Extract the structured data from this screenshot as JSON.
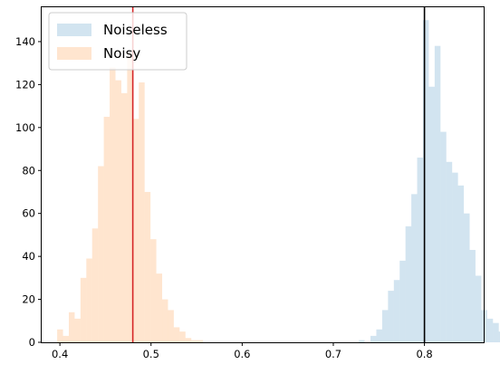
{
  "chart_data": {
    "type": "histogram",
    "title": "",
    "xlabel": "",
    "ylabel": "",
    "xlim": [
      0.38,
      0.865
    ],
    "ylim": [
      0,
      156
    ],
    "grid": false,
    "legend_placement": "top-left",
    "x_ticks": [
      0.4,
      0.5,
      0.6,
      0.7,
      0.8
    ],
    "x_tick_labels": [
      "0.4",
      "0.5",
      "0.6",
      "0.7",
      "0.8"
    ],
    "y_ticks": [
      0,
      20,
      40,
      60,
      80,
      100,
      120,
      140
    ],
    "y_tick_labels": [
      "0",
      "20",
      "40",
      "60",
      "80",
      "100",
      "120",
      "140"
    ],
    "series": [
      {
        "name": "Noiseless",
        "color": "#1f77b4",
        "opacity": 0.2,
        "bin_start": 0.728,
        "bin_width": 0.0064,
        "counts": [
          1,
          0,
          3,
          6,
          15,
          24,
          29,
          38,
          54,
          69,
          86,
          150,
          119,
          138,
          98,
          84,
          79,
          73,
          60,
          43,
          31,
          15,
          11,
          9,
          5,
          3,
          1,
          1
        ]
      },
      {
        "name": "Noisy",
        "color": "#ff7f0e",
        "opacity": 0.2,
        "bin_start": 0.397,
        "bin_width": 0.0064,
        "counts": [
          6,
          3,
          14,
          11,
          30,
          39,
          53,
          82,
          105,
          128,
          122,
          116,
          135,
          104,
          121,
          70,
          48,
          32,
          20,
          15,
          7,
          5,
          2,
          1,
          1,
          0
        ]
      }
    ],
    "vertical_lines": [
      {
        "x": 0.48,
        "color": "#d62728"
      },
      {
        "x": 0.8,
        "color": "#000000"
      }
    ]
  }
}
